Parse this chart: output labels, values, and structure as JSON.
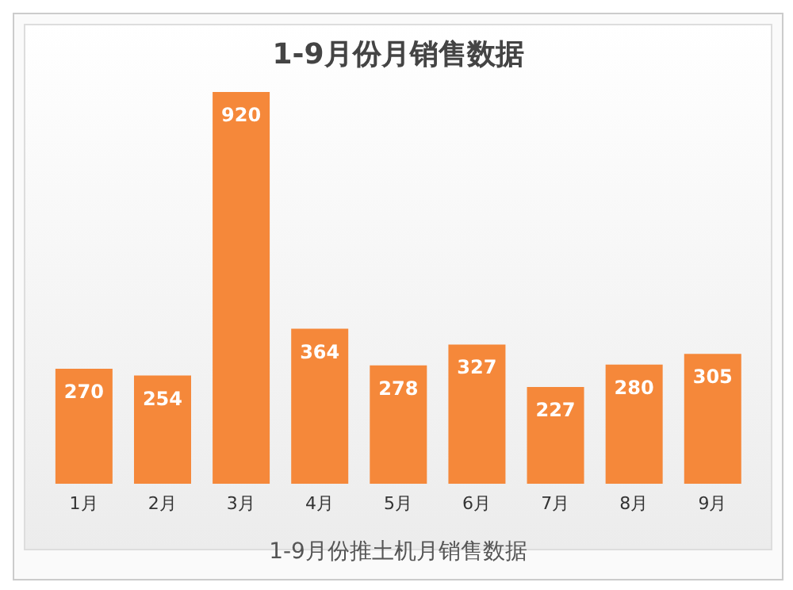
{
  "chart_data": {
    "type": "bar",
    "title": "1-9月份月销售数据",
    "categories": [
      "1月",
      "2月",
      "3月",
      "4月",
      "5月",
      "6月",
      "7月",
      "8月",
      "9月"
    ],
    "values": [
      270,
      254,
      920,
      364,
      278,
      327,
      227,
      280,
      305
    ],
    "color": "#f5883a",
    "data_labels": true,
    "annotations": [
      "1-9月份推土机月销售数据"
    ]
  }
}
